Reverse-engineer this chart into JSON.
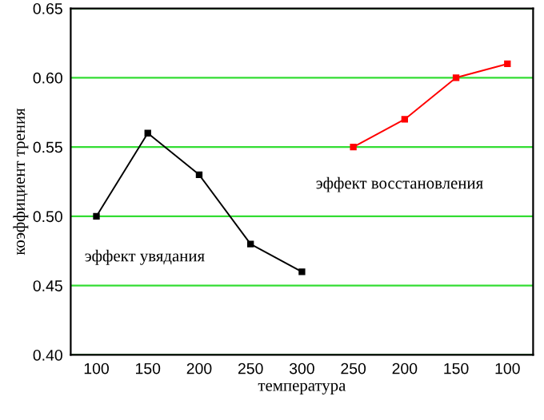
{
  "chart_data": {
    "type": "line",
    "xlabel": "температура",
    "ylabel": "коэффициент трения",
    "categories": [
      "100",
      "150",
      "200",
      "250",
      "300",
      "250",
      "200",
      "150",
      "100"
    ],
    "series": [
      {
        "name": "эффект увядания",
        "color": "#000000",
        "values": [
          0.5,
          0.56,
          0.53,
          0.48,
          0.46,
          null,
          null,
          null,
          null
        ]
      },
      {
        "name": "эффект восстановления",
        "color": "#ff0000",
        "values": [
          null,
          null,
          null,
          null,
          null,
          0.55,
          0.57,
          0.6,
          0.61
        ]
      }
    ],
    "ylim": [
      0.4,
      0.65
    ],
    "yticks": [
      {
        "value": 0.4,
        "label": "0.40"
      },
      {
        "value": 0.45,
        "label": "0.45"
      },
      {
        "value": 0.5,
        "label": "0.50"
      },
      {
        "value": 0.55,
        "label": "0.55"
      },
      {
        "value": 0.6,
        "label": "0.60"
      },
      {
        "value": 0.65,
        "label": "0.65"
      }
    ],
    "grid": "y",
    "marker": "square",
    "line_style": "solid",
    "legend": false
  }
}
